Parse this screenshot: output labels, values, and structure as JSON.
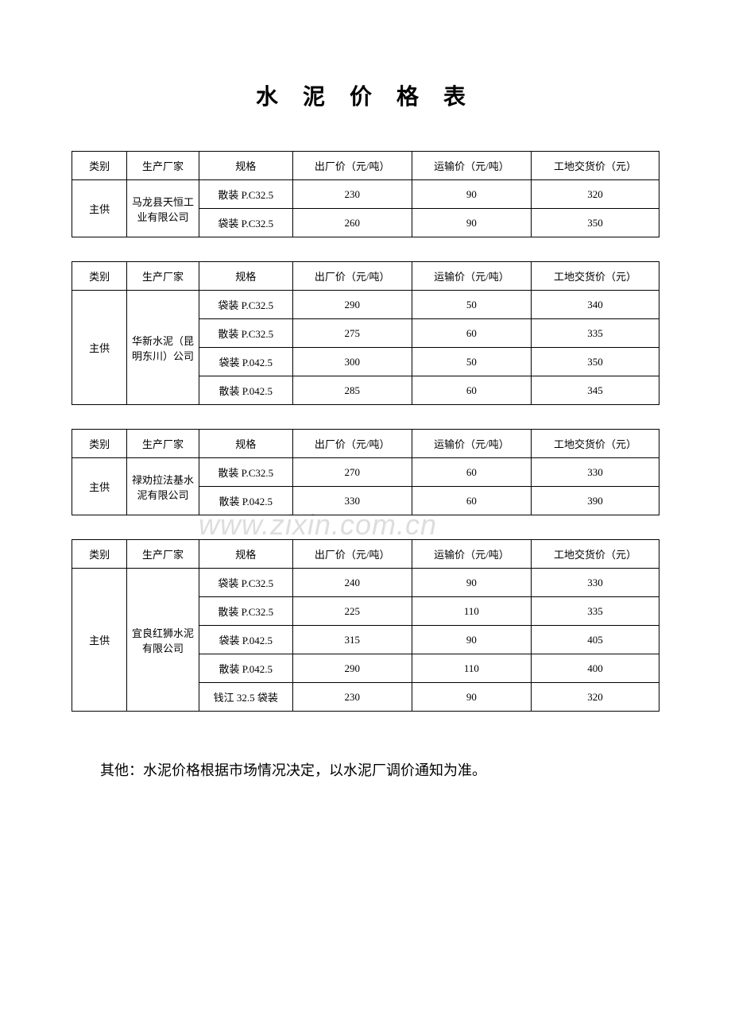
{
  "title": "水 泥 价 格 表",
  "headers": {
    "category": "类别",
    "manufacturer": "生产厂家",
    "specification": "规格",
    "factory_price": "出厂价（元/吨）",
    "shipping_price": "运输价（元/吨）",
    "site_price": "工地交货价（元）"
  },
  "tables": [
    {
      "category": "主供",
      "manufacturer": "马龙县天恒工业有限公司",
      "rows": [
        {
          "spec": "散装 P.C32.5",
          "factory": "230",
          "shipping": "90",
          "site": "320"
        },
        {
          "spec": "袋装 P.C32.5",
          "factory": "260",
          "shipping": "90",
          "site": "350"
        }
      ]
    },
    {
      "category": "主供",
      "manufacturer": "华新水泥（昆明东川）公司",
      "rows": [
        {
          "spec": "袋装 P.C32.5",
          "factory": "290",
          "shipping": "50",
          "site": "340"
        },
        {
          "spec": "散装 P.C32.5",
          "factory": "275",
          "shipping": "60",
          "site": "335"
        },
        {
          "spec": "袋装 P.042.5",
          "factory": "300",
          "shipping": "50",
          "site": "350"
        },
        {
          "spec": "散装 P.042.5",
          "factory": "285",
          "shipping": "60",
          "site": "345"
        }
      ]
    },
    {
      "category": "主供",
      "manufacturer": "禄劝拉法基水泥有限公司",
      "rows": [
        {
          "spec": "散装 P.C32.5",
          "factory": "270",
          "shipping": "60",
          "site": "330"
        },
        {
          "spec": "散装 P.042.5",
          "factory": "330",
          "shipping": "60",
          "site": "390"
        }
      ]
    },
    {
      "category": "主供",
      "manufacturer": "宜良红狮水泥有限公司",
      "rows": [
        {
          "spec": "袋装 P.C32.5",
          "factory": "240",
          "shipping": "90",
          "site": "330"
        },
        {
          "spec": "散装 P.C32.5",
          "factory": "225",
          "shipping": "110",
          "site": "335"
        },
        {
          "spec": "袋装 P.042.5",
          "factory": "315",
          "shipping": "90",
          "site": "405"
        },
        {
          "spec": "散装 P.042.5",
          "factory": "290",
          "shipping": "110",
          "site": "400"
        },
        {
          "spec": "钱江 32.5 袋装",
          "factory": "230",
          "shipping": "90",
          "site": "320"
        }
      ]
    }
  ],
  "footnote": "其他：水泥价格根据市场情况决定，以水泥厂调价通知为准。",
  "watermark": "www.zixin.com.cn"
}
